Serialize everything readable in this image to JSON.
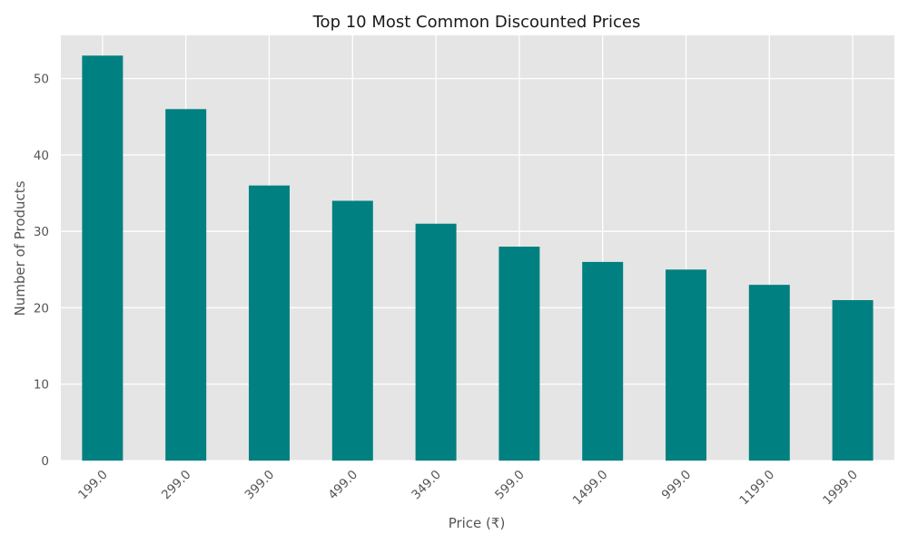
{
  "chart_data": {
    "type": "bar",
    "title": "Top 10 Most Common Discounted Prices",
    "xlabel": "Price (₹)",
    "ylabel": "Number of Products",
    "categories": [
      "199.0",
      "299.0",
      "399.0",
      "499.0",
      "349.0",
      "599.0",
      "1499.0",
      "999.0",
      "1199.0",
      "1999.0"
    ],
    "values": [
      53,
      46,
      36,
      34,
      31,
      28,
      26,
      25,
      23,
      21
    ],
    "ylim": [
      0,
      55.65
    ],
    "yticks": [
      0,
      10,
      20,
      30,
      40,
      50
    ],
    "grid": true,
    "colors": {
      "bar": "#008080",
      "plot_background": "#e5e5e5",
      "grid": "#ffffff"
    }
  }
}
